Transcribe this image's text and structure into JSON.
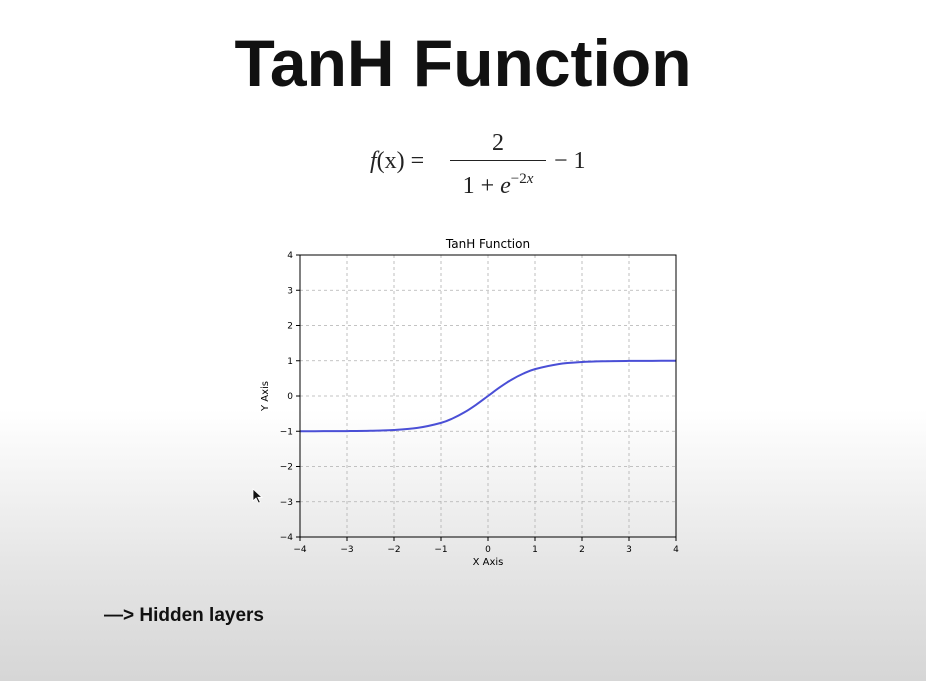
{
  "slide": {
    "title": "TanH Function",
    "bullet": "—> Hidden layers"
  },
  "formula": {
    "lhs_func": "f",
    "lhs_arg": "(x)",
    "equals": " =",
    "numerator": "2",
    "denominator_base": "1 + ",
    "denominator_e": "e",
    "denominator_exp_sign": "−2",
    "denominator_exp_var": "x",
    "tail": "− 1"
  },
  "chart_data": {
    "type": "line",
    "title": "TanH Function",
    "xlabel": "X Axis",
    "ylabel": "Y Axis",
    "xlim": [
      -4,
      4
    ],
    "ylim": [
      -4,
      4
    ],
    "xticks": [
      -4,
      -3,
      -2,
      -1,
      0,
      1,
      2,
      3,
      4
    ],
    "yticks": [
      -4,
      -3,
      -2,
      -1,
      0,
      1,
      2,
      3,
      4
    ],
    "xtick_labels": [
      "−4",
      "−3",
      "−2",
      "−1",
      "0",
      "1",
      "2",
      "3",
      "4"
    ],
    "ytick_labels": [
      "−4",
      "−3",
      "−2",
      "−1",
      "0",
      "1",
      "2",
      "3",
      "4"
    ],
    "grid": true,
    "series": [
      {
        "color": "#4a4fd6",
        "x": [
          -4,
          -3.5,
          -3,
          -2.5,
          -2,
          -1.5,
          -1,
          -0.75,
          -0.5,
          -0.25,
          0,
          0.25,
          0.5,
          0.75,
          1,
          1.5,
          2,
          2.5,
          3,
          3.5,
          4
        ],
        "y": [
          -0.999,
          -0.998,
          -0.995,
          -0.987,
          -0.964,
          -0.905,
          -0.762,
          -0.635,
          -0.462,
          -0.245,
          0,
          0.245,
          0.462,
          0.635,
          0.762,
          0.905,
          0.964,
          0.987,
          0.995,
          0.998,
          0.999
        ]
      }
    ]
  }
}
